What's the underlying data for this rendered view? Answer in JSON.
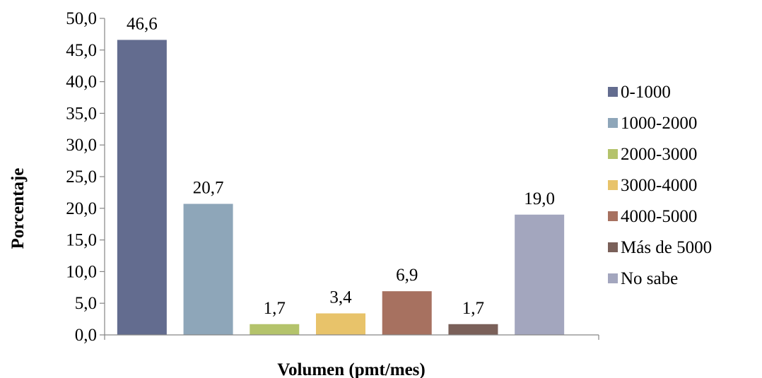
{
  "chart_data": {
    "type": "bar",
    "xlabel": "Volumen (pmt/mes)",
    "ylabel": "Porcentaje",
    "ylim": [
      0,
      50
    ],
    "ytick_step": 5,
    "yticks": [
      "0,0",
      "5,0",
      "10,0",
      "15,0",
      "20,0",
      "25,0",
      "30,0",
      "35,0",
      "40,0",
      "45,0",
      "50,0"
    ],
    "grid": false,
    "legend_position": "right",
    "series": [
      {
        "name": "0-1000",
        "value": 46.6,
        "label": "46,6",
        "color": "#636C8F"
      },
      {
        "name": "1000-2000",
        "value": 20.7,
        "label": "20,7",
        "color": "#8EA6B9"
      },
      {
        "name": "2000-3000",
        "value": 1.7,
        "label": "1,7",
        "color": "#B4C36B"
      },
      {
        "name": "3000-4000",
        "value": 3.4,
        "label": "3,4",
        "color": "#E8C36A"
      },
      {
        "name": "4000-5000",
        "value": 6.9,
        "label": "6,9",
        "color": "#A77160"
      },
      {
        "name": "Más de 5000",
        "value": 1.7,
        "label": "1,7",
        "color": "#7A6059"
      },
      {
        "name": "No sabe",
        "value": 19.0,
        "label": "19,0",
        "color": "#A3A6BE"
      }
    ]
  }
}
